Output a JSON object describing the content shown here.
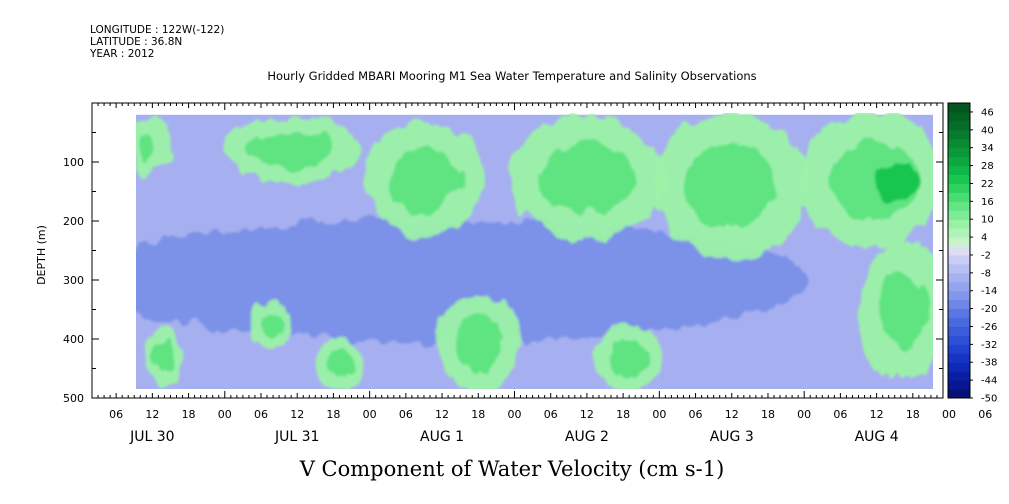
{
  "header": {
    "longitude": "LONGITUDE : 122W(-122)",
    "latitude": "LATITUDE : 36.8N",
    "year": "YEAR : 2012"
  },
  "chart_data": {
    "type": "heatmap",
    "title": "Hourly Gridded MBARI Mooring M1 Sea Water Temperature and Salinity Observations",
    "xlabel": "V Component of Water Velocity (cm s-1)",
    "ylabel": "DEPTH (m)",
    "ylim": [
      500,
      0
    ],
    "y_ticks": [
      "100",
      "200",
      "300",
      "400",
      "500"
    ],
    "x_hour_ticks": [
      "06",
      "12",
      "18",
      "00",
      "06",
      "12",
      "18",
      "00",
      "06",
      "12",
      "18",
      "00",
      "06",
      "12",
      "18",
      "00",
      "06",
      "12",
      "18",
      "00",
      "06",
      "12",
      "18",
      "00",
      "06",
      "12",
      "18"
    ],
    "x_day_labels": [
      "JUL 30",
      "JUL 31",
      "AUG 1",
      "AUG 2",
      "AUG 3",
      "AUG 4"
    ],
    "colorbar_ticks": [
      "46",
      "40",
      "34",
      "28",
      "22",
      "16",
      "10",
      "4",
      "-2",
      "-8",
      "-14",
      "-20",
      "-26",
      "-32",
      "-38",
      "-44",
      "-50"
    ],
    "colorbar_range": [
      -50,
      49
    ],
    "data_extent": {
      "time_start": "JUL 30 08",
      "time_end": "AUG 4 23",
      "depth_top": 20,
      "depth_bottom": 485
    },
    "positive_regions": [
      {
        "time": "JUL 30 09-14",
        "depth": "25-120"
      },
      {
        "time": "JUL 30 12-16",
        "depth": "380-480"
      },
      {
        "time": "JUL 31 00-22",
        "depth": "30-130"
      },
      {
        "time": "JUL 31 05-10",
        "depth": "340-410"
      },
      {
        "time": "JUL 31 16-22",
        "depth": "400-480"
      },
      {
        "time": "AUG 1 00-18",
        "depth": "40-220"
      },
      {
        "time": "AUG 1 12-24",
        "depth": "330-485"
      },
      {
        "time": "AUG 2 00-24",
        "depth": "25-230"
      },
      {
        "time": "AUG 2 14-24",
        "depth": "380-480"
      },
      {
        "time": "AUG 3 00-24",
        "depth": "20-260"
      },
      {
        "time": "AUG 4 00-23",
        "depth": "20-240"
      },
      {
        "time": "AUG 4 10-23",
        "depth": "240-460"
      }
    ],
    "peak_positive": {
      "time": "AUG 4 12-18",
      "depth": "100-160",
      "value": 30
    },
    "strongest_negative": {
      "time": "JUL 30 - AUG 3",
      "depth": "200-400",
      "value": -30
    }
  },
  "colors": {
    "positive_ramp": [
      "#d8f4d8",
      "#9cf2a8",
      "#50e278",
      "#10c24a",
      "#0a9838",
      "#06702a",
      "#04501e"
    ],
    "negative_ramp": [
      "#e0e0f6",
      "#b4bcf2",
      "#8a9cec",
      "#5a76e2",
      "#3458d8",
      "#1838c8",
      "#0a1ea4",
      "#040c6e"
    ],
    "field_base": "#a6b0f0"
  }
}
